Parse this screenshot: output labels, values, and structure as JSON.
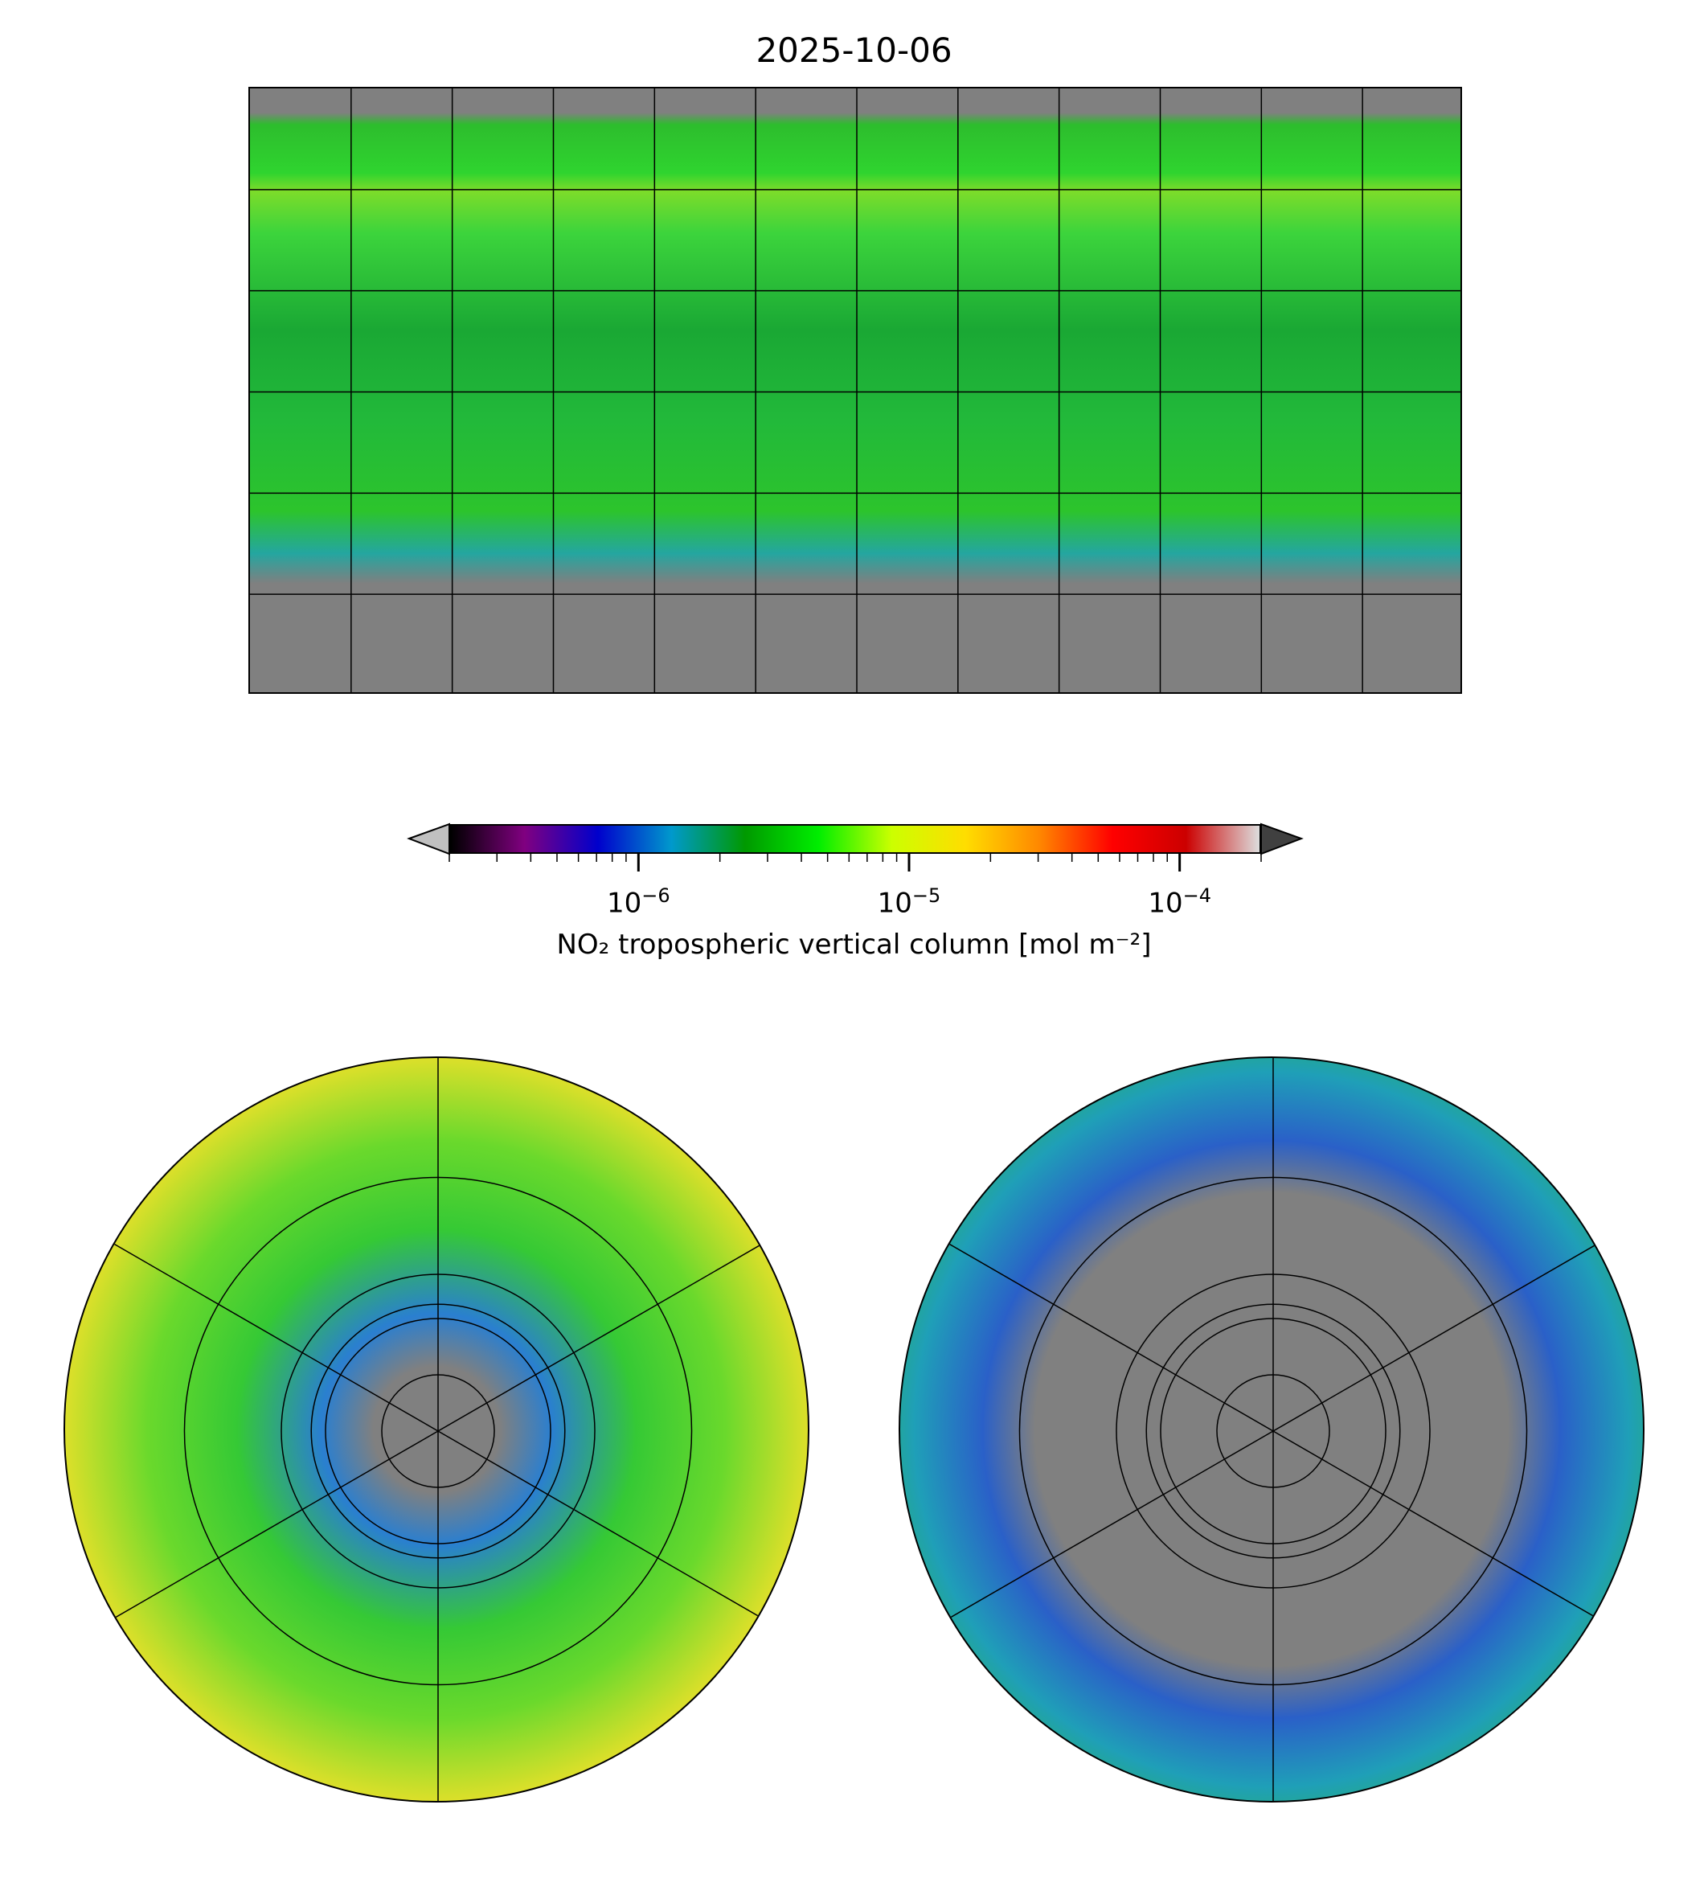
{
  "title": "2025-10-06",
  "colorbar": {
    "label": "NO₂ tropospheric vertical column [mol m⁻²]",
    "ticks": [
      {
        "base": "10",
        "exp": "−6",
        "value": 1e-06
      },
      {
        "base": "10",
        "exp": "−5",
        "value": 1e-05
      },
      {
        "base": "10",
        "exp": "−4",
        "value": 0.0001
      }
    ],
    "colors": [
      "#000000",
      "#800080",
      "#0000cc",
      "#0099cc",
      "#009900",
      "#00ee00",
      "#ccff00",
      "#ffdd00",
      "#ff8800",
      "#ff0000",
      "#cc0000",
      "#dddddd"
    ],
    "under_color": "#c0c0c0",
    "over_color": "#404040"
  },
  "chart_data": {
    "type": "heatmap",
    "title": "2025-10-06",
    "panels": [
      "global plate carree map",
      "north polar stereographic",
      "south polar stereographic"
    ],
    "colorbar_scale": "log",
    "colorbar_range": [
      2e-07,
      0.0002
    ],
    "colorbar_label": "NO₂ tropospheric vertical column [mol m⁻²]",
    "gridline_interval_deg": 30,
    "missing_color": "#808080"
  }
}
